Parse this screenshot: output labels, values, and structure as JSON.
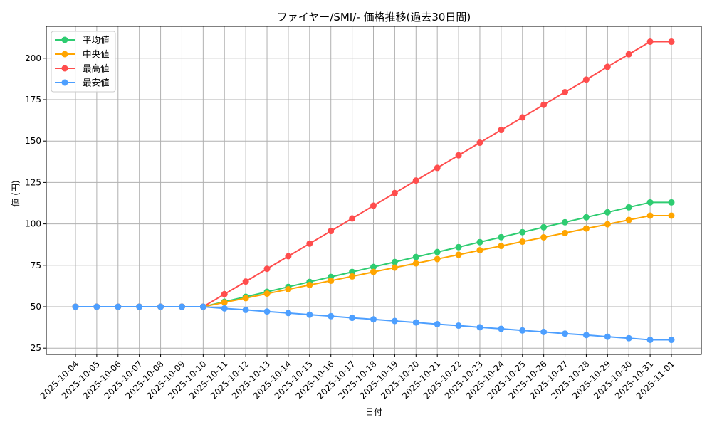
{
  "chart_data": {
    "type": "line",
    "title": "ファイヤー/SMI/- 価格推移(過去30日間)",
    "xlabel": "日付",
    "ylabel": "値 (円)",
    "ylim": [
      21,
      219
    ],
    "yticks": [
      25,
      50,
      75,
      100,
      125,
      150,
      175,
      200
    ],
    "grid": true,
    "legend_position": "upper left",
    "categories": [
      "2025-10-04",
      "2025-10-05",
      "2025-10-06",
      "2025-10-07",
      "2025-10-08",
      "2025-10-09",
      "2025-10-10",
      "2025-10-11",
      "2025-10-12",
      "2025-10-13",
      "2025-10-14",
      "2025-10-15",
      "2025-10-16",
      "2025-10-17",
      "2025-10-18",
      "2025-10-19",
      "2025-10-20",
      "2025-10-21",
      "2025-10-22",
      "2025-10-23",
      "2025-10-24",
      "2025-10-25",
      "2025-10-26",
      "2025-10-27",
      "2025-10-28",
      "2025-10-29",
      "2025-10-30",
      "2025-10-31",
      "2025-11-01"
    ],
    "series": [
      {
        "name": "平均値",
        "color": "#2ecc71",
        "values": [
          50,
          50,
          50,
          50,
          50,
          50,
          50,
          53,
          56,
          59,
          62,
          65,
          68,
          71,
          74,
          77,
          80,
          83,
          86,
          89,
          92,
          95,
          98,
          101,
          104,
          107,
          110,
          113,
          113
        ]
      },
      {
        "name": "中央値",
        "color": "#ffa500",
        "values": [
          50,
          50,
          50,
          50,
          50,
          50,
          50,
          52.6,
          55.2,
          57.9,
          60.5,
          63.1,
          65.7,
          68.3,
          71,
          73.6,
          76.2,
          78.8,
          81.4,
          84.1,
          86.7,
          89.3,
          91.9,
          94.5,
          97.2,
          99.8,
          102.4,
          105,
          105
        ]
      },
      {
        "name": "最高値",
        "color": "#ff4d4d",
        "values": [
          50,
          50,
          50,
          50,
          50,
          50,
          50,
          57.6,
          65.2,
          72.9,
          80.5,
          88.1,
          95.7,
          103.3,
          111,
          118.6,
          126.2,
          133.8,
          141.4,
          149,
          156.7,
          164.3,
          171.9,
          179.5,
          187.1,
          194.8,
          202.4,
          210,
          210
        ]
      },
      {
        "name": "最安値",
        "color": "#4d9fff",
        "values": [
          50,
          50,
          50,
          50,
          50,
          50,
          50,
          49,
          48.1,
          47.1,
          46.2,
          45.2,
          44.3,
          43.3,
          42.4,
          41.4,
          40.5,
          39.5,
          38.6,
          37.6,
          36.7,
          35.7,
          34.8,
          33.8,
          32.9,
          31.9,
          31,
          30,
          30
        ]
      }
    ]
  }
}
